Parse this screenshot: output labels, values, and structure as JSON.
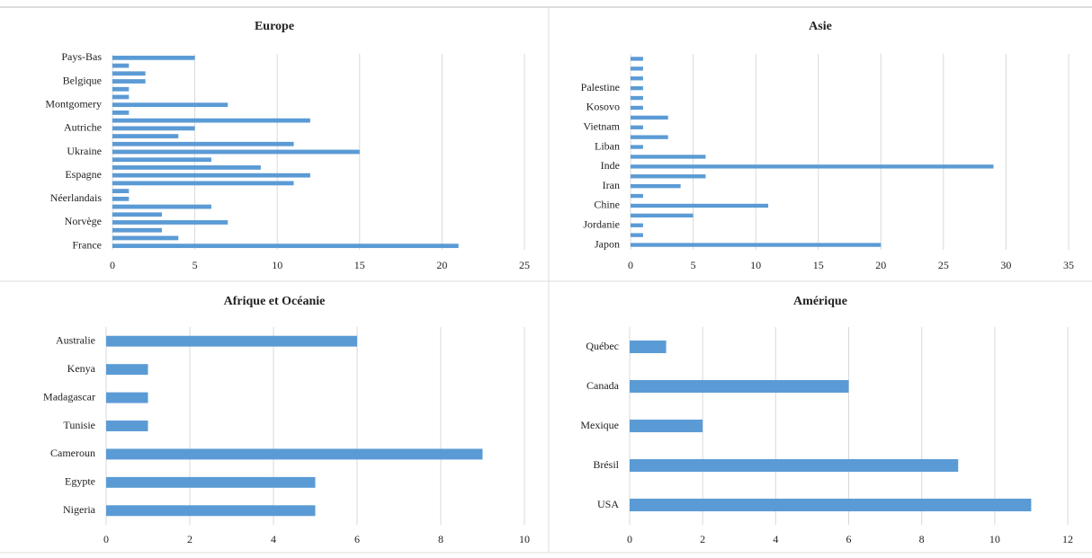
{
  "chart_data": [
    {
      "type": "bar",
      "orientation": "horizontal",
      "title": "Europe",
      "categories": [
        "Pays-Bas",
        null,
        null,
        "Belgique",
        null,
        null,
        "Montgomery",
        null,
        null,
        "Autriche",
        null,
        null,
        "Ukraine",
        null,
        null,
        "Espagne",
        null,
        null,
        "Néerlandais",
        null,
        null,
        "Norvège",
        null,
        null,
        "France"
      ],
      "values": [
        5,
        1,
        2,
        2,
        1,
        1,
        7,
        1,
        12,
        5,
        4,
        11,
        15,
        6,
        9,
        12,
        11,
        1,
        1,
        6,
        3,
        7,
        3,
        4,
        21
      ],
      "color": "#5b9bd5",
      "xlim": [
        0,
        25
      ],
      "xticks": [
        0,
        5,
        10,
        15,
        20,
        25
      ],
      "grid": true
    },
    {
      "type": "bar",
      "orientation": "horizontal",
      "title": "Asie",
      "categories": [
        null,
        null,
        null,
        "Palestine",
        null,
        "Kosovo",
        null,
        "Vietnam",
        null,
        "Liban",
        null,
        "Inde",
        null,
        "Iran",
        null,
        "Chine",
        null,
        "Jordanie",
        null,
        "Japon"
      ],
      "values": [
        1,
        1,
        1,
        1,
        1,
        1,
        3,
        1,
        3,
        1,
        6,
        29,
        6,
        4,
        1,
        11,
        5,
        1,
        1,
        20
      ],
      "color": "#5b9bd5",
      "xlim": [
        0,
        35
      ],
      "xticks": [
        0,
        5,
        10,
        15,
        20,
        25,
        30,
        35
      ],
      "grid": true
    },
    {
      "type": "bar",
      "orientation": "horizontal",
      "title": "Afrique  et Océanie",
      "categories": [
        "Australie",
        "Kenya",
        "Madagascar",
        "Tunisie",
        "Cameroun",
        "Egypte",
        "Nigeria"
      ],
      "values": [
        6,
        1,
        1,
        1,
        9,
        5,
        5
      ],
      "color": "#5b9bd5",
      "xlim": [
        0,
        10
      ],
      "xticks": [
        0,
        2,
        4,
        6,
        8,
        10
      ],
      "grid": true
    },
    {
      "type": "bar",
      "orientation": "horizontal",
      "title": "Amérique",
      "categories": [
        "Québec",
        "Canada",
        "Mexique",
        "Brésil",
        "USA"
      ],
      "values": [
        1,
        6,
        2,
        9,
        11
      ],
      "color": "#5b9bd5",
      "xlim": [
        0,
        12
      ],
      "xticks": [
        0,
        2,
        4,
        6,
        8,
        10,
        12
      ],
      "grid": true
    }
  ]
}
